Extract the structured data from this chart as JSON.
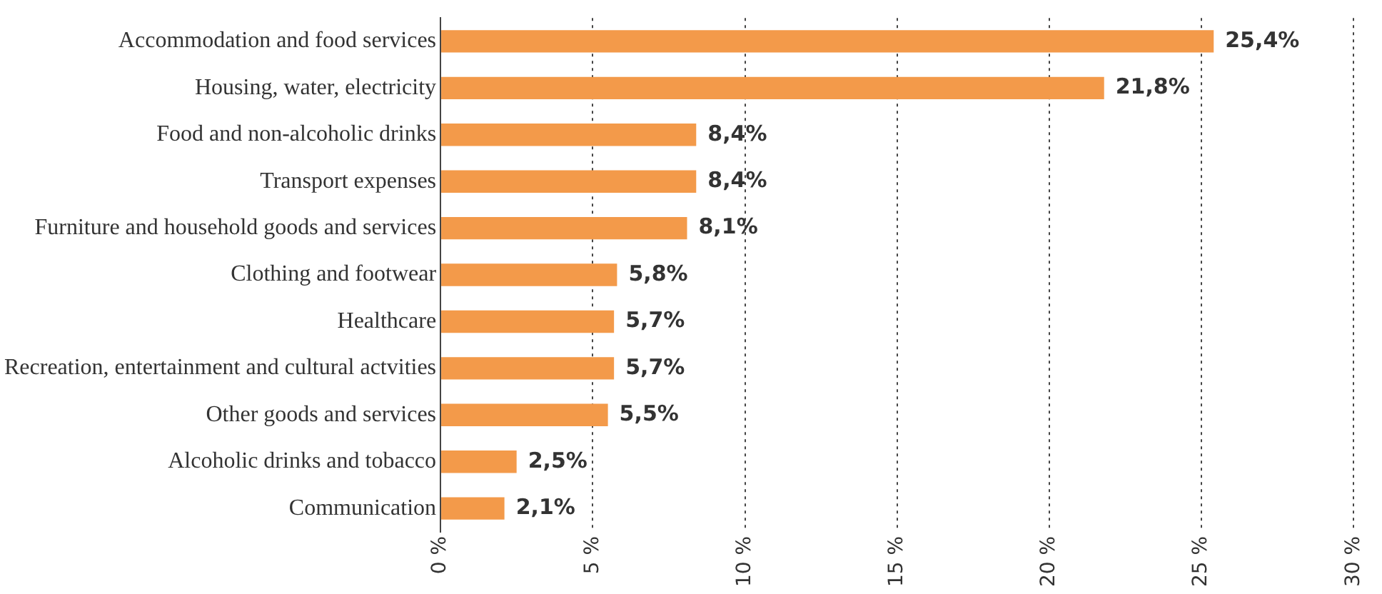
{
  "chart_data": {
    "type": "bar",
    "orientation": "horizontal",
    "categories": [
      "Accommodation and food services",
      "Housing, water, electricity",
      "Food and non-alcoholic drinks",
      "Transport expenses",
      "Furniture and household goods and services",
      "Clothing and footwear",
      "Healthcare",
      "Recreation, entertainment and cultural actvities",
      "Other goods and services",
      "Alcoholic drinks and tobacco",
      "Communication"
    ],
    "values": [
      25.4,
      21.8,
      8.4,
      8.4,
      8.1,
      5.8,
      5.7,
      5.7,
      5.5,
      2.5,
      2.1
    ],
    "value_labels": [
      "25,4%",
      "21,8%",
      "8,4%",
      "8,4%",
      "8,1%",
      "5,8%",
      "5,7%",
      "5,7%",
      "5,5%",
      "2,5%",
      "2,1%"
    ],
    "color": "#f39a4a",
    "xlim": [
      0,
      30
    ],
    "xticks": [
      {
        "value": 0,
        "label": "0 %"
      },
      {
        "value": 5,
        "label": "5 %"
      },
      {
        "value": 10,
        "label": "10 %"
      },
      {
        "value": 15,
        "label": "15 %"
      },
      {
        "value": 20,
        "label": "20 %"
      },
      {
        "value": 25,
        "label": "25 %"
      },
      {
        "value": 30,
        "label": "30 %"
      }
    ],
    "grid": "x",
    "legend": false
  }
}
